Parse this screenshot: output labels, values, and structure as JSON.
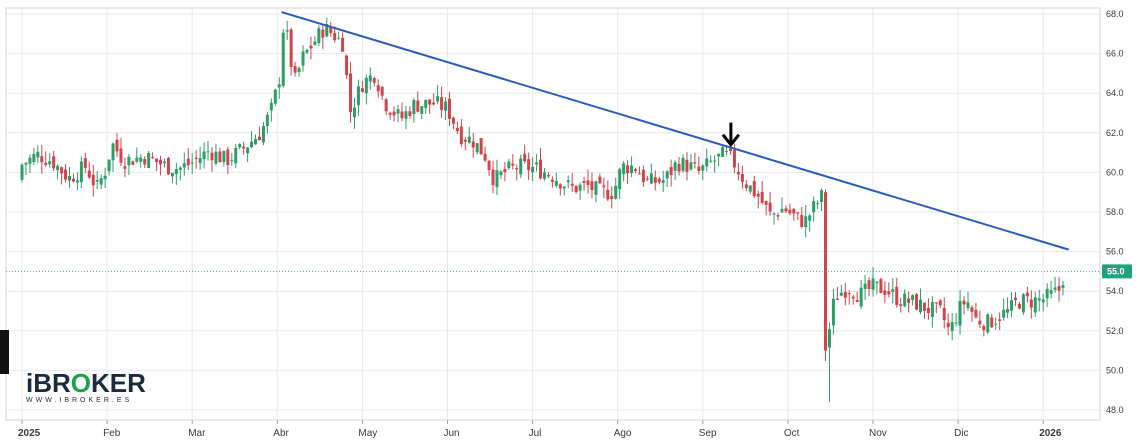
{
  "brand": {
    "logo_main_1": "iBR",
    "logo_accent": "O",
    "logo_main_2": "KER",
    "logo_sub": "WWW.IBROKER.ES"
  },
  "chart_data": {
    "type": "candlestick",
    "title": "",
    "xlabel": "",
    "ylabel": "",
    "ylim": [
      47,
      68.5
    ],
    "y_ticks": [
      48.0,
      50.0,
      52.0,
      54.0,
      56.0,
      58.0,
      60.0,
      62.0,
      64.0,
      66.0,
      68.0
    ],
    "x_ticks": [
      {
        "label": "2025",
        "pos": 0.0,
        "bold": true
      },
      {
        "label": "Feb",
        "pos": 1.0
      },
      {
        "label": "Mar",
        "pos": 2.0
      },
      {
        "label": "Abr",
        "pos": 3.0
      },
      {
        "label": "May",
        "pos": 4.0
      },
      {
        "label": "Jun",
        "pos": 5.0
      },
      {
        "label": "Jul",
        "pos": 6.0
      },
      {
        "label": "Ago",
        "pos": 7.0
      },
      {
        "label": "Sep",
        "pos": 8.0
      },
      {
        "label": "Oct",
        "pos": 9.0
      },
      {
        "label": "Nov",
        "pos": 10.0
      },
      {
        "label": "Dic",
        "pos": 11.0
      },
      {
        "label": "2026",
        "pos": 12.0,
        "bold": true
      }
    ],
    "last_price": 55.0,
    "last_price_label": "55.0",
    "trendline": [
      {
        "t": 3.05,
        "price": 68.1
      },
      {
        "t": 12.3,
        "price": 56.1
      }
    ],
    "arrow_at": {
      "t": 8.33,
      "price": 61.4
    },
    "colors": {
      "up": "#2e9e68",
      "down": "#d1444c",
      "trend": "#2a5cb8",
      "price_line": "#3aa3a6",
      "badge": "#1fa37a"
    },
    "anchors": [
      {
        "t": 0.0,
        "c": 60.4
      },
      {
        "t": 0.18,
        "c": 60.9
      },
      {
        "t": 0.35,
        "c": 60.6
      },
      {
        "t": 0.55,
        "c": 59.7
      },
      {
        "t": 0.75,
        "c": 60.3
      },
      {
        "t": 0.88,
        "c": 59.2
      },
      {
        "t": 1.0,
        "c": 60.3
      },
      {
        "t": 1.05,
        "c": 61.5
      },
      {
        "t": 1.2,
        "c": 60.6
      },
      {
        "t": 1.45,
        "c": 60.8
      },
      {
        "t": 1.7,
        "c": 60.3
      },
      {
        "t": 1.85,
        "c": 60.2
      },
      {
        "t": 2.0,
        "c": 60.5
      },
      {
        "t": 2.2,
        "c": 61.1
      },
      {
        "t": 2.4,
        "c": 60.6
      },
      {
        "t": 2.6,
        "c": 61.2
      },
      {
        "t": 2.8,
        "c": 62.0
      },
      {
        "t": 2.92,
        "c": 63.0
      },
      {
        "t": 3.02,
        "c": 64.6
      },
      {
        "t": 3.08,
        "c": 67.8
      },
      {
        "t": 3.2,
        "c": 64.5
      },
      {
        "t": 3.3,
        "c": 65.8
      },
      {
        "t": 3.45,
        "c": 66.7
      },
      {
        "t": 3.55,
        "c": 67.3
      },
      {
        "t": 3.65,
        "c": 67.0
      },
      {
        "t": 3.78,
        "c": 66.5
      },
      {
        "t": 3.85,
        "c": 63.0
      },
      {
        "t": 4.0,
        "c": 64.5
      },
      {
        "t": 4.15,
        "c": 65.0
      },
      {
        "t": 4.25,
        "c": 63.6
      },
      {
        "t": 4.45,
        "c": 62.7
      },
      {
        "t": 4.6,
        "c": 63.4
      },
      {
        "t": 4.85,
        "c": 63.5
      },
      {
        "t": 5.0,
        "c": 63.2
      },
      {
        "t": 5.15,
        "c": 61.9
      },
      {
        "t": 5.3,
        "c": 61.6
      },
      {
        "t": 5.45,
        "c": 60.8
      },
      {
        "t": 5.55,
        "c": 59.6
      },
      {
        "t": 5.7,
        "c": 60.1
      },
      {
        "t": 5.85,
        "c": 60.3
      },
      {
        "t": 6.05,
        "c": 60.2
      },
      {
        "t": 6.25,
        "c": 59.8
      },
      {
        "t": 6.45,
        "c": 59.2
      },
      {
        "t": 6.65,
        "c": 59.3
      },
      {
        "t": 6.8,
        "c": 59.0
      },
      {
        "t": 6.95,
        "c": 59.0
      },
      {
        "t": 7.05,
        "c": 60.3
      },
      {
        "t": 7.2,
        "c": 60.3
      },
      {
        "t": 7.35,
        "c": 59.5
      },
      {
        "t": 7.55,
        "c": 59.6
      },
      {
        "t": 7.7,
        "c": 60.5
      },
      {
        "t": 7.85,
        "c": 60.3
      },
      {
        "t": 7.95,
        "c": 60.0
      },
      {
        "t": 8.1,
        "c": 60.5
      },
      {
        "t": 8.25,
        "c": 60.9
      },
      {
        "t": 8.35,
        "c": 60.6
      },
      {
        "t": 8.5,
        "c": 59.5
      },
      {
        "t": 8.65,
        "c": 58.8
      },
      {
        "t": 8.8,
        "c": 57.8
      },
      {
        "t": 8.95,
        "c": 58.2
      },
      {
        "t": 9.1,
        "c": 57.7
      },
      {
        "t": 9.2,
        "c": 57.5
      },
      {
        "t": 9.3,
        "c": 58.2
      },
      {
        "t": 9.42,
        "c": 58.9
      },
      {
        "t": 9.45,
        "c": 51.1
      },
      {
        "t": 9.55,
        "c": 53.7
      },
      {
        "t": 9.7,
        "c": 54.2
      },
      {
        "t": 9.85,
        "c": 53.8
      },
      {
        "t": 10.0,
        "c": 54.2
      },
      {
        "t": 10.15,
        "c": 54.1
      },
      {
        "t": 10.3,
        "c": 53.6
      },
      {
        "t": 10.5,
        "c": 53.4
      },
      {
        "t": 10.65,
        "c": 53.1
      },
      {
        "t": 10.8,
        "c": 52.9
      },
      {
        "t": 10.9,
        "c": 51.9
      },
      {
        "t": 11.0,
        "c": 53.0
      },
      {
        "t": 11.1,
        "c": 53.6
      },
      {
        "t": 11.2,
        "c": 52.6
      },
      {
        "t": 11.35,
        "c": 52.4
      },
      {
        "t": 11.5,
        "c": 52.8
      },
      {
        "t": 11.6,
        "c": 53.0
      },
      {
        "t": 11.7,
        "c": 53.5
      },
      {
        "t": 11.85,
        "c": 53.5
      },
      {
        "t": 12.0,
        "c": 53.6
      },
      {
        "t": 12.1,
        "c": 53.8
      },
      {
        "t": 12.2,
        "c": 54.1
      },
      {
        "t": 12.25,
        "c": 55.0
      }
    ]
  }
}
